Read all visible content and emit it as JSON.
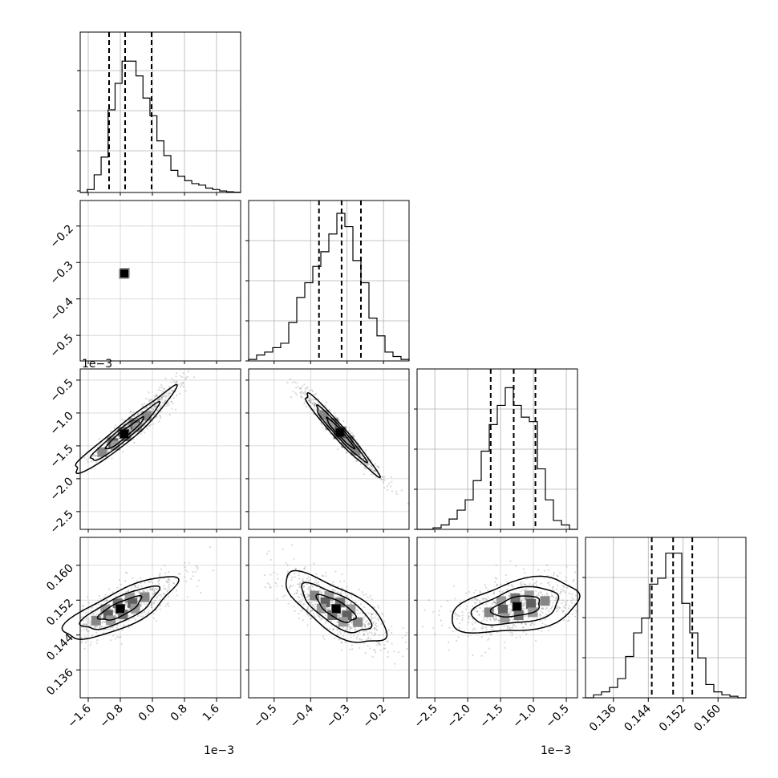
{
  "chart_data": {
    "type": "corner",
    "grid": true,
    "params": [
      {
        "range": [
          -0.0018,
          0.0022
        ],
        "ticks": [
          -0.0016,
          -0.0008,
          0.0,
          0.0008,
          0.0016
        ],
        "tick_labels": [
          "−1.6",
          "−0.8",
          "0.0",
          "0.8",
          "1.6"
        ],
        "offset_text": "1e−3",
        "quantiles": [
          -0.00108,
          -0.00068,
          -2e-05
        ]
      },
      {
        "range": [
          -0.57,
          -0.13
        ],
        "ticks": [
          -0.5,
          -0.4,
          -0.3,
          -0.2
        ],
        "tick_labels": [
          "−0.5",
          "−0.4",
          "−0.3",
          "−0.2"
        ],
        "offset_text": "",
        "quantiles": [
          -0.377,
          -0.315,
          -0.262
        ]
      },
      {
        "range": [
          -0.00277,
          -0.00033
        ],
        "ticks": [
          -0.0025,
          -0.002,
          -0.0015,
          -0.001,
          -0.0005
        ],
        "tick_labels": [
          "−2.5",
          "−2.0",
          "−1.5",
          "−1.0",
          "−0.5"
        ],
        "offset_text": "1e−3",
        "quantiles": [
          -0.00165,
          -0.0013,
          -0.00097
        ]
      },
      {
        "range": [
          0.1296,
          0.1664
        ],
        "ticks": [
          0.136,
          0.144,
          0.152,
          0.16
        ],
        "tick_labels": [
          "0.136",
          "0.144",
          "0.152",
          "0.160"
        ],
        "offset_text": "",
        "quantiles": [
          0.1448,
          0.1497,
          0.1541
        ]
      }
    ],
    "hists": [
      [
        0.0,
        0.02,
        0.12,
        0.24,
        0.56,
        0.74,
        0.89,
        0.89,
        0.79,
        0.64,
        0.52,
        0.35,
        0.25,
        0.15,
        0.11,
        0.08,
        0.06,
        0.05,
        0.03,
        0.02,
        0.01,
        0.005,
        0.002
      ],
      [
        0.01,
        0.04,
        0.06,
        0.09,
        0.12,
        0.26,
        0.43,
        0.53,
        0.64,
        0.74,
        0.86,
        1.0,
        0.91,
        0.68,
        0.53,
        0.29,
        0.17,
        0.06,
        0.03,
        0.01
      ],
      [
        0.0,
        0.0,
        0.01,
        0.03,
        0.07,
        0.13,
        0.2,
        0.33,
        0.53,
        0.71,
        0.84,
        0.96,
        0.84,
        0.76,
        0.73,
        0.41,
        0.2,
        0.06,
        0.03,
        0.0
      ],
      [
        0.0,
        0.02,
        0.04,
        0.07,
        0.13,
        0.28,
        0.44,
        0.54,
        0.77,
        0.81,
        0.98,
        0.98,
        0.64,
        0.44,
        0.27,
        0.09,
        0.04,
        0.02,
        0.01,
        0.0
      ]
    ],
    "pairs": [
      {
        "x": 0,
        "y": 1,
        "center": [
          -0.0007,
          -0.33
        ],
        "dir": [
          1.0,
          -0.22
        ],
        "len": [
          0.00055,
          0.06
        ],
        "bend": 0.0
      },
      {
        "x": 0,
        "y": 2,
        "center": [
          -0.0007,
          -0.00132
        ],
        "dir": [
          0.0008,
          0.0009
        ],
        "len": [
          0.9,
          0.25
        ],
        "bend": -0.25
      },
      {
        "x": 1,
        "y": 2,
        "center": [
          -0.32,
          -0.0013
        ],
        "dir": [
          0.1,
          -0.0011
        ],
        "len": [
          0.75,
          0.18
        ],
        "bend": 0.0
      },
      {
        "x": 0,
        "y": 3,
        "center": [
          -0.0008,
          0.15
        ],
        "dir": [
          0.0008,
          0.006
        ],
        "len": [
          0.85,
          0.5
        ],
        "bend": 0.0
      },
      {
        "x": 1,
        "y": 3,
        "center": [
          -0.33,
          0.15
        ],
        "dir": [
          0.1,
          -0.006
        ],
        "len": [
          0.8,
          0.6
        ],
        "bend": 0.0
      },
      {
        "x": 2,
        "y": 3,
        "center": [
          -0.00125,
          0.1505
        ],
        "dir": [
          0.0005,
          0.002
        ],
        "len": [
          0.9,
          0.7
        ],
        "bend": 0.0
      }
    ]
  }
}
